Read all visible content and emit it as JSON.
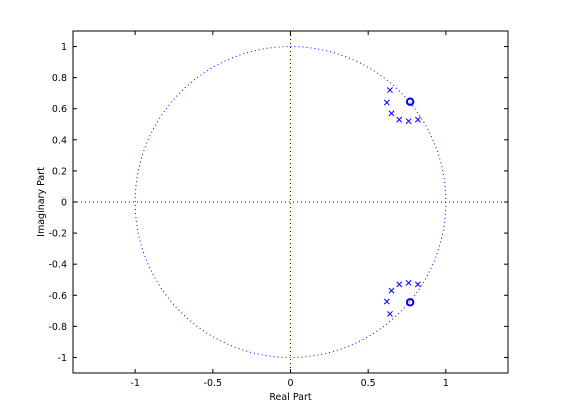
{
  "chart_data": {
    "type": "scatter",
    "title": "",
    "xlabel": "Real Part",
    "ylabel": "Imaginary Part",
    "xlim": [
      -1.4,
      1.4
    ],
    "ylim": [
      -1.1,
      1.1
    ],
    "xticks": [
      -1,
      -0.5,
      0,
      0.5,
      1
    ],
    "xtick_labels": [
      "-1",
      "-0.5",
      "0",
      "0.5",
      "1"
    ],
    "yticks": [
      1,
      0.8,
      0.6,
      0.4,
      0.2,
      0,
      -0.2,
      -0.4,
      -0.6,
      -0.8,
      -1
    ],
    "ytick_labels": [
      "1",
      "0.8",
      "0.6",
      "0.4",
      "0.2",
      "0",
      "-0.2",
      "-0.4",
      "-0.6",
      "-0.8",
      "-1"
    ],
    "grid": false,
    "unit_circle": true,
    "reference_lines": [
      "x=0",
      "y=0"
    ],
    "series": [
      {
        "marker": "o",
        "color": "#0000ff",
        "x": [
          0.77,
          0.77
        ],
        "y": [
          0.645,
          -0.645
        ]
      },
      {
        "marker": "x",
        "color": "#0000ff",
        "x": [
          0.64,
          0.62,
          0.65,
          0.7,
          0.76,
          0.82,
          0.64,
          0.62,
          0.65,
          0.7,
          0.76,
          0.82
        ],
        "y": [
          0.72,
          0.64,
          0.57,
          0.53,
          0.52,
          0.53,
          -0.72,
          -0.64,
          -0.57,
          -0.53,
          -0.52,
          -0.53
        ]
      }
    ]
  }
}
